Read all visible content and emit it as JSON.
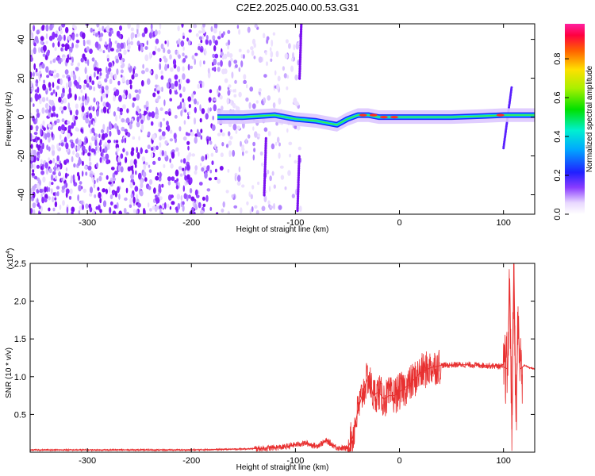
{
  "title": "C2E2.2025.040.00.53.G31",
  "chart_data": [
    {
      "type": "heatmap",
      "xlabel": "Height of straight line (km)",
      "ylabel": "Frequency (Hz)",
      "xlim": [
        -355,
        130
      ],
      "ylim": [
        -50,
        48
      ],
      "xticks": [
        -300,
        -200,
        -100,
        0,
        100
      ],
      "yticks": [
        -40,
        -20,
        0,
        20,
        40
      ],
      "colorbar": {
        "label": "Normalized spectral amplitude",
        "range": [
          0.0,
          0.98
        ],
        "ticks": [
          0.0,
          0.2,
          0.4,
          0.6,
          0.8
        ]
      },
      "band_center_hz": [
        [
          -175,
          0
        ],
        [
          -150,
          0
        ],
        [
          -120,
          1
        ],
        [
          -100,
          -1
        ],
        [
          -80,
          -2
        ],
        [
          -60,
          -4
        ],
        [
          -50,
          -1
        ],
        [
          -40,
          1
        ],
        [
          -30,
          1
        ],
        [
          -20,
          0
        ],
        [
          -10,
          0
        ],
        [
          0,
          0
        ],
        [
          20,
          0
        ],
        [
          50,
          0
        ],
        [
          80,
          0.5
        ],
        [
          100,
          1
        ],
        [
          115,
          1
        ],
        [
          130,
          1
        ]
      ]
    },
    {
      "type": "line",
      "xlabel": "Height of straight line (km)",
      "ylabel": "SNR (10 * v/v)",
      "y_multiplier": "(x10",
      "y_multiplier_exp": "4",
      "xlim": [
        -355,
        130
      ],
      "ylim": [
        0,
        2.5
      ],
      "xticks": [
        -300,
        -200,
        -100,
        0,
        100
      ],
      "yticks": [
        0.5,
        1.0,
        1.5,
        2.0,
        2.5
      ],
      "line_color": "#e83030",
      "series": [
        {
          "x": [
            -355,
            -300,
            -250,
            -200,
            -160,
            -130,
            -110,
            -100,
            -90,
            -80,
            -70,
            -60,
            -50,
            -45,
            -40,
            -35,
            -30,
            -25,
            -20,
            -15,
            -10,
            -5,
            0,
            10,
            20,
            30,
            40,
            60,
            80,
            95,
            100,
            104,
            106,
            108,
            110,
            112,
            114,
            116,
            120,
            125,
            130
          ],
          "y": [
            0.03,
            0.03,
            0.03,
            0.03,
            0.04,
            0.05,
            0.07,
            0.1,
            0.12,
            0.08,
            0.15,
            0.06,
            0.05,
            0.2,
            0.55,
            0.8,
            1.0,
            0.75,
            0.8,
            0.7,
            0.75,
            0.75,
            0.8,
            0.9,
            1.05,
            1.12,
            1.15,
            1.16,
            1.15,
            1.14,
            1.13,
            1.1,
            2.3,
            0.3,
            2.5,
            0.4,
            1.8,
            1.1,
            1.15,
            1.12,
            1.1
          ]
        }
      ]
    }
  ]
}
